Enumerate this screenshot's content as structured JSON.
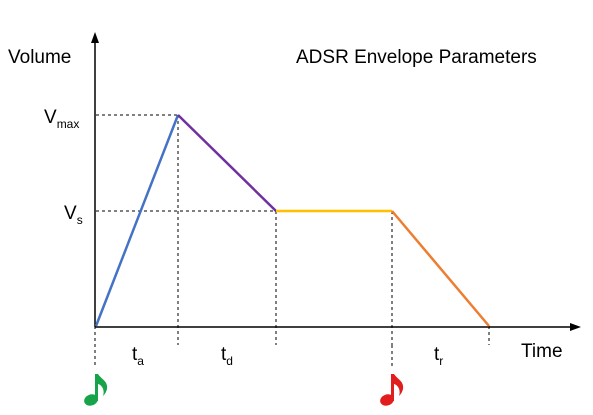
{
  "title": "ADSR Envelope Parameters",
  "axes": {
    "y_label": "Volume",
    "x_label": "Time"
  },
  "levels": {
    "vmax": {
      "main": "V",
      "sub": "max"
    },
    "vs": {
      "main": "V",
      "sub": "s"
    }
  },
  "intervals": {
    "ta": {
      "main": "t",
      "sub": "a"
    },
    "td": {
      "main": "t",
      "sub": "d"
    },
    "tr": {
      "main": "t",
      "sub": "r"
    }
  },
  "notes": {
    "note_on": {
      "icon": "music-note-icon",
      "color": "#16a34a"
    },
    "note_off": {
      "icon": "music-note-icon",
      "color": "#e11d1d"
    }
  },
  "colors": {
    "attack": "#4472c4",
    "decay": "#7030a0",
    "sustain": "#ffc000",
    "release": "#ed7d31"
  }
}
